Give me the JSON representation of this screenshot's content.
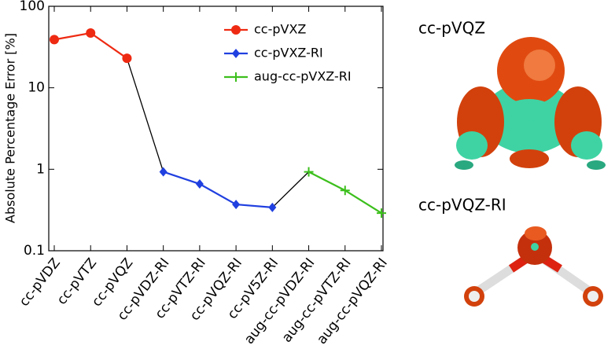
{
  "chart_data": {
    "type": "line",
    "categories": [
      "cc-pVDZ",
      "cc-pVTZ",
      "cc-pVQZ",
      "cc-pVDZ-RI",
      "cc-pVTZ-RI",
      "cc-pVQZ-RI",
      "cc-pV5Z-RI",
      "aug-cc-pVDZ-RI",
      "aug-cc-pVTZ-RI",
      "aug-cc-pVQZ-RI"
    ],
    "y_label": "Absolute Percentage Error [%]",
    "log_y": true,
    "ylim": [
      0.1,
      100
    ],
    "yticks": [
      0.1,
      1,
      10,
      100
    ],
    "legend": "upper right",
    "series": [
      {
        "name": "cc-pVXZ",
        "color": "#ee2a12",
        "marker": "circle",
        "values": [
          39,
          47,
          23,
          null,
          null,
          null,
          null,
          null,
          null,
          null
        ]
      },
      {
        "name": "cc-pVXZ-RI",
        "color": "#2040e0",
        "marker": "diamond",
        "values": [
          null,
          null,
          null,
          0.93,
          0.66,
          0.37,
          0.34,
          null,
          null,
          null
        ]
      },
      {
        "name": "aug-cc-pVXZ-RI",
        "color": "#3cbf1c",
        "marker": "plus",
        "values": [
          null,
          null,
          null,
          null,
          null,
          null,
          null,
          0.93,
          0.55,
          0.29
        ]
      }
    ]
  },
  "images": [
    {
      "label": "cc-pVQZ"
    },
    {
      "label": "cc-pVQZ-RI"
    }
  ]
}
